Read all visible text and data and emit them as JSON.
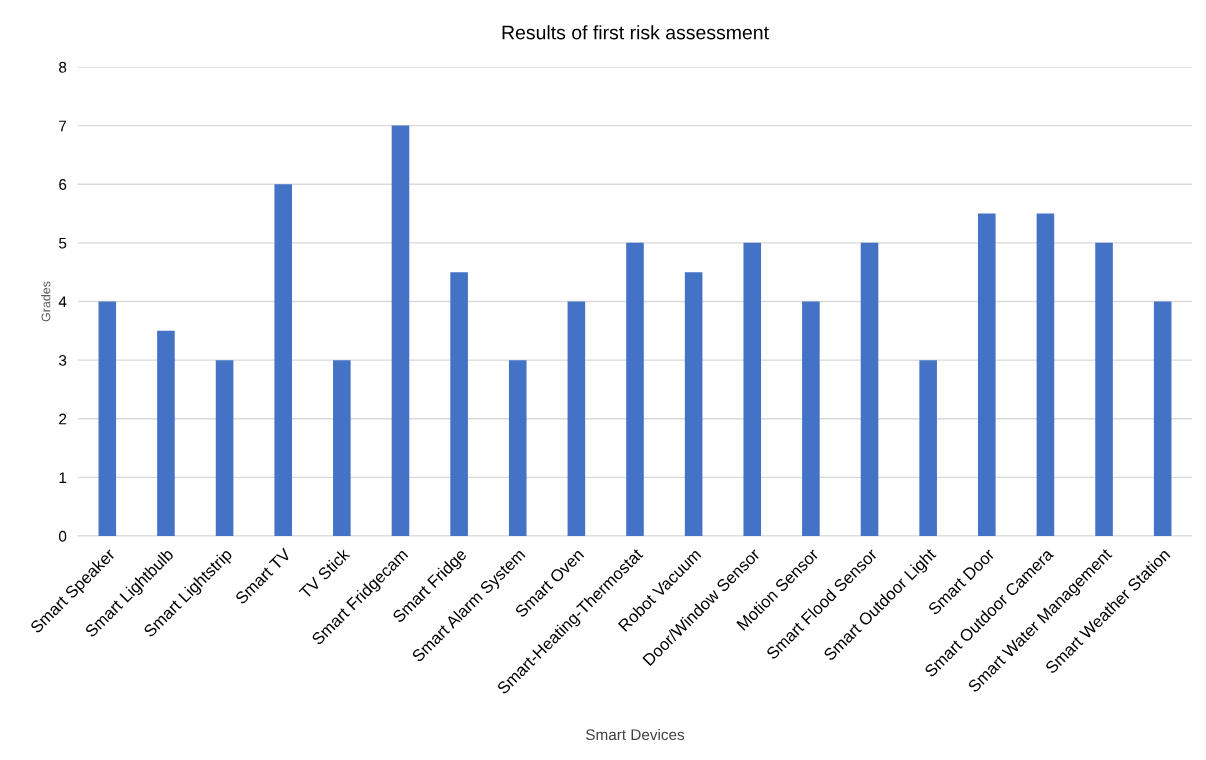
{
  "chart_data": {
    "type": "bar",
    "title": "Results of first risk assessment",
    "xlabel": "Smart Devices",
    "ylabel": "Grades",
    "categories": [
      "Smart Speaker",
      "Smart Lightbulb",
      "Smart Lightstrip",
      "Smart TV",
      "TV Stick",
      "Smart Fridgecam",
      "Smart Fridge",
      "Smart Alarm System",
      "Smart Oven",
      "Smart-Heating-Thermostat",
      "Robot Vacuum",
      "Door/Window Sensor",
      "Motion Sensor",
      "Smart Flood Sensor",
      "Smart Outdoor Light",
      "Smart Door",
      "Smart Outdoor Camera",
      "Smart Water Management",
      "Smart Weather Station"
    ],
    "values": [
      4,
      3.5,
      3,
      6,
      3,
      7,
      4.5,
      3,
      4,
      5,
      4.5,
      5,
      4,
      5,
      3,
      5.5,
      5.5,
      5,
      4
    ],
    "color": "#4472c4",
    "ylim": [
      0,
      8
    ],
    "yticks": [
      0,
      1,
      2,
      3,
      4,
      5,
      6,
      7,
      8
    ],
    "grid": "y",
    "legend": false
  }
}
